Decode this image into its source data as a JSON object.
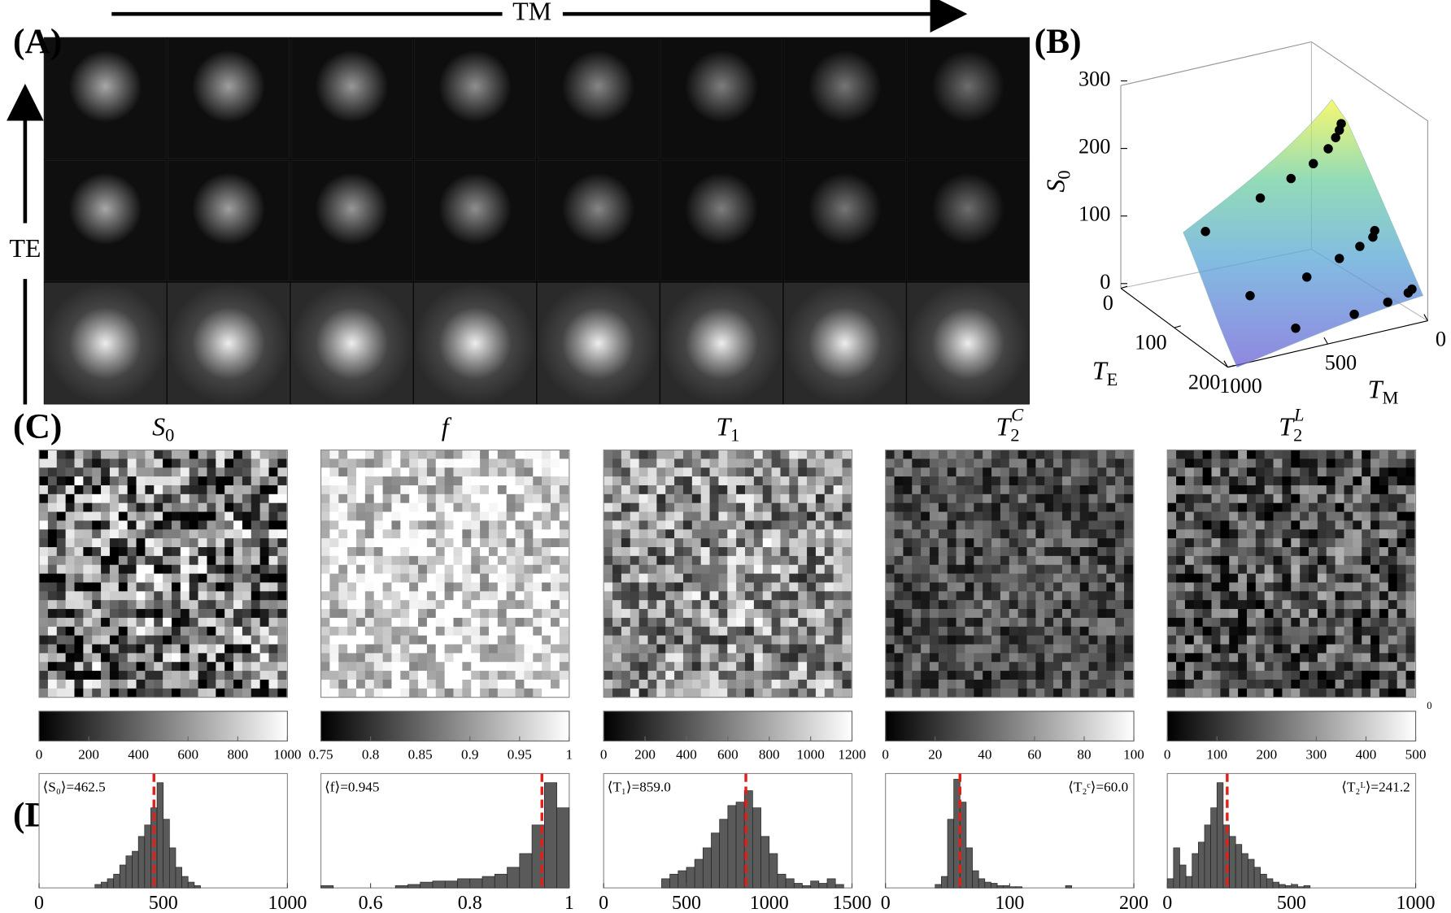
{
  "figure": {
    "panel_labels": [
      "(A)",
      "(B)",
      "(C)",
      "(D)"
    ],
    "panel_a": {
      "x_arrow_label": "TM",
      "y_arrow_label": "TE"
    },
    "panel_b": {
      "z_label": {
        "base": "S",
        "sub": "0"
      },
      "te_label": {
        "base": "T",
        "sub": "E"
      },
      "tm_label": {
        "base": "T",
        "sub": "M"
      },
      "zlim": [
        0,
        300
      ],
      "zticks": [
        0,
        100,
        200,
        300
      ],
      "telim": [
        0,
        200
      ],
      "teticks": [
        0,
        100,
        200
      ],
      "tmlim": [
        0,
        1000
      ],
      "tmticks": [
        0,
        500,
        1000
      ]
    },
    "maps": [
      {
        "title": {
          "base": "S",
          "sub": "0"
        },
        "colorbar": {
          "lim": [
            0,
            1000
          ],
          "ticks": [
            0,
            200,
            400,
            600,
            800,
            1000
          ]
        },
        "histogram": {
          "xlim": [
            0,
            1000
          ],
          "xticks": [
            0,
            500,
            1000
          ],
          "ylim": [
            0,
            100
          ],
          "bins": [
            225,
            250,
            275,
            300,
            325,
            350,
            375,
            400,
            425,
            450,
            475,
            500,
            525,
            550,
            575,
            600,
            625,
            650
          ],
          "counts": [
            3,
            5,
            8,
            12,
            20,
            28,
            32,
            45,
            55,
            70,
            92,
            60,
            35,
            18,
            10,
            5,
            2
          ],
          "mean": 462.5,
          "mean_label": "⟨S₀⟩=462.5"
        }
      },
      {
        "title": {
          "base": "f"
        },
        "colorbar": {
          "lim": [
            0.75,
            1
          ],
          "ticks": [
            0.75,
            0.8,
            0.85,
            0.9,
            0.95,
            1
          ]
        },
        "histogram": {
          "xlim": [
            0.5,
            1
          ],
          "xticks": [
            0.6,
            0.8,
            1
          ],
          "ylim": [
            0,
            100
          ],
          "bins": [
            0.5,
            0.525,
            0.55,
            0.575,
            0.6,
            0.625,
            0.65,
            0.675,
            0.7,
            0.725,
            0.75,
            0.775,
            0.8,
            0.825,
            0.85,
            0.875,
            0.9,
            0.925,
            0.95,
            0.975,
            1
          ],
          "counts": [
            2,
            0,
            0,
            0,
            0,
            0,
            2,
            3,
            5,
            6,
            6,
            8,
            8,
            10,
            12,
            18,
            30,
            55,
            92,
            70
          ],
          "mean": 0.945,
          "mean_label": "⟨f⟩=0.945"
        }
      },
      {
        "title": {
          "base": "T",
          "sub": "1"
        },
        "colorbar": {
          "lim": [
            0,
            1200
          ],
          "ticks": [
            0,
            200,
            400,
            600,
            800,
            1000,
            1200
          ]
        },
        "histogram": {
          "xlim": [
            0,
            1500
          ],
          "xticks": [
            0,
            500,
            1000,
            1500
          ],
          "ylim": [
            0,
            100
          ],
          "bins": [
            350,
            400,
            450,
            500,
            550,
            600,
            650,
            700,
            750,
            800,
            850,
            900,
            950,
            1000,
            1050,
            1100,
            1150,
            1200,
            1250,
            1300,
            1350,
            1400,
            1450
          ],
          "counts": [
            8,
            12,
            15,
            18,
            25,
            35,
            48,
            60,
            72,
            75,
            85,
            70,
            45,
            30,
            12,
            8,
            4,
            2,
            6,
            4,
            8,
            3
          ],
          "mean": 859.0,
          "mean_label": "⟨T₁⟩=859.0"
        }
      },
      {
        "title": {
          "base": "T",
          "sub": "2",
          "sup": "C"
        },
        "colorbar": {
          "lim": [
            0,
            100
          ],
          "ticks": [
            0,
            20,
            40,
            60,
            80,
            100
          ]
        },
        "histogram": {
          "xlim": [
            0,
            200
          ],
          "xticks": [
            0,
            100,
            200
          ],
          "ylim": [
            0,
            100
          ],
          "bins": [
            40,
            45,
            50,
            55,
            60,
            65,
            70,
            75,
            80,
            85,
            90,
            95,
            100,
            105,
            110,
            115,
            120,
            125,
            130,
            135,
            140,
            145,
            150
          ],
          "counts": [
            3,
            10,
            60,
            95,
            75,
            35,
            15,
            8,
            5,
            4,
            2,
            2,
            1,
            1,
            0,
            0,
            0,
            0,
            0,
            0,
            0,
            2
          ],
          "mean": 60.0,
          "mean_label": "⟨T₂ᶜ⟩=60.0"
        }
      },
      {
        "title": {
          "base": "T",
          "sub": "2",
          "sup": "L"
        },
        "colorbar": {
          "lim": [
            0,
            500
          ],
          "ticks": [
            0,
            100,
            200,
            300,
            400,
            500
          ],
          "corner_label": "0"
        },
        "histogram": {
          "xlim": [
            0,
            1000
          ],
          "xticks": [
            0,
            500,
            1000
          ],
          "ylim": [
            0,
            100
          ],
          "bins": [
            0,
            25,
            50,
            75,
            100,
            125,
            150,
            175,
            200,
            225,
            250,
            275,
            300,
            325,
            350,
            375,
            400,
            425,
            450,
            475,
            500,
            525,
            550,
            575,
            600
          ],
          "counts": [
            8,
            35,
            20,
            10,
            30,
            40,
            55,
            70,
            92,
            55,
            45,
            38,
            30,
            25,
            18,
            12,
            8,
            5,
            3,
            2,
            3,
            1,
            2,
            0
          ],
          "mean": 241.2,
          "mean_label": "⟨T₂ᴸ⟩=241.2"
        }
      }
    ]
  }
}
